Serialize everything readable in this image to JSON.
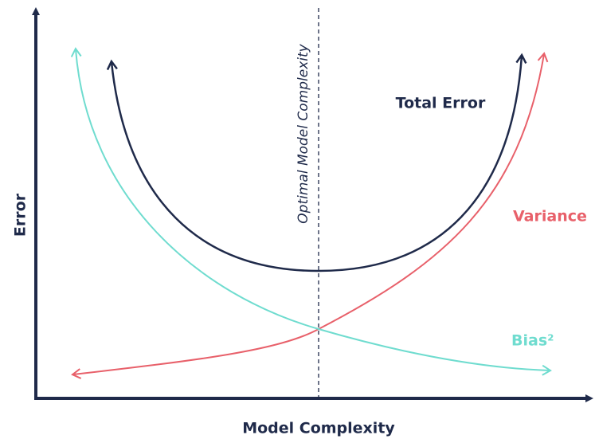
{
  "axes": {
    "x_label": "Model Complexity",
    "y_label": "Error"
  },
  "optimal_line": {
    "label": "Optimal Model Complexity"
  },
  "curves": [
    {
      "label": "Total Error"
    },
    {
      "label": "Variance"
    },
    {
      "label": "Bias²"
    }
  ]
}
